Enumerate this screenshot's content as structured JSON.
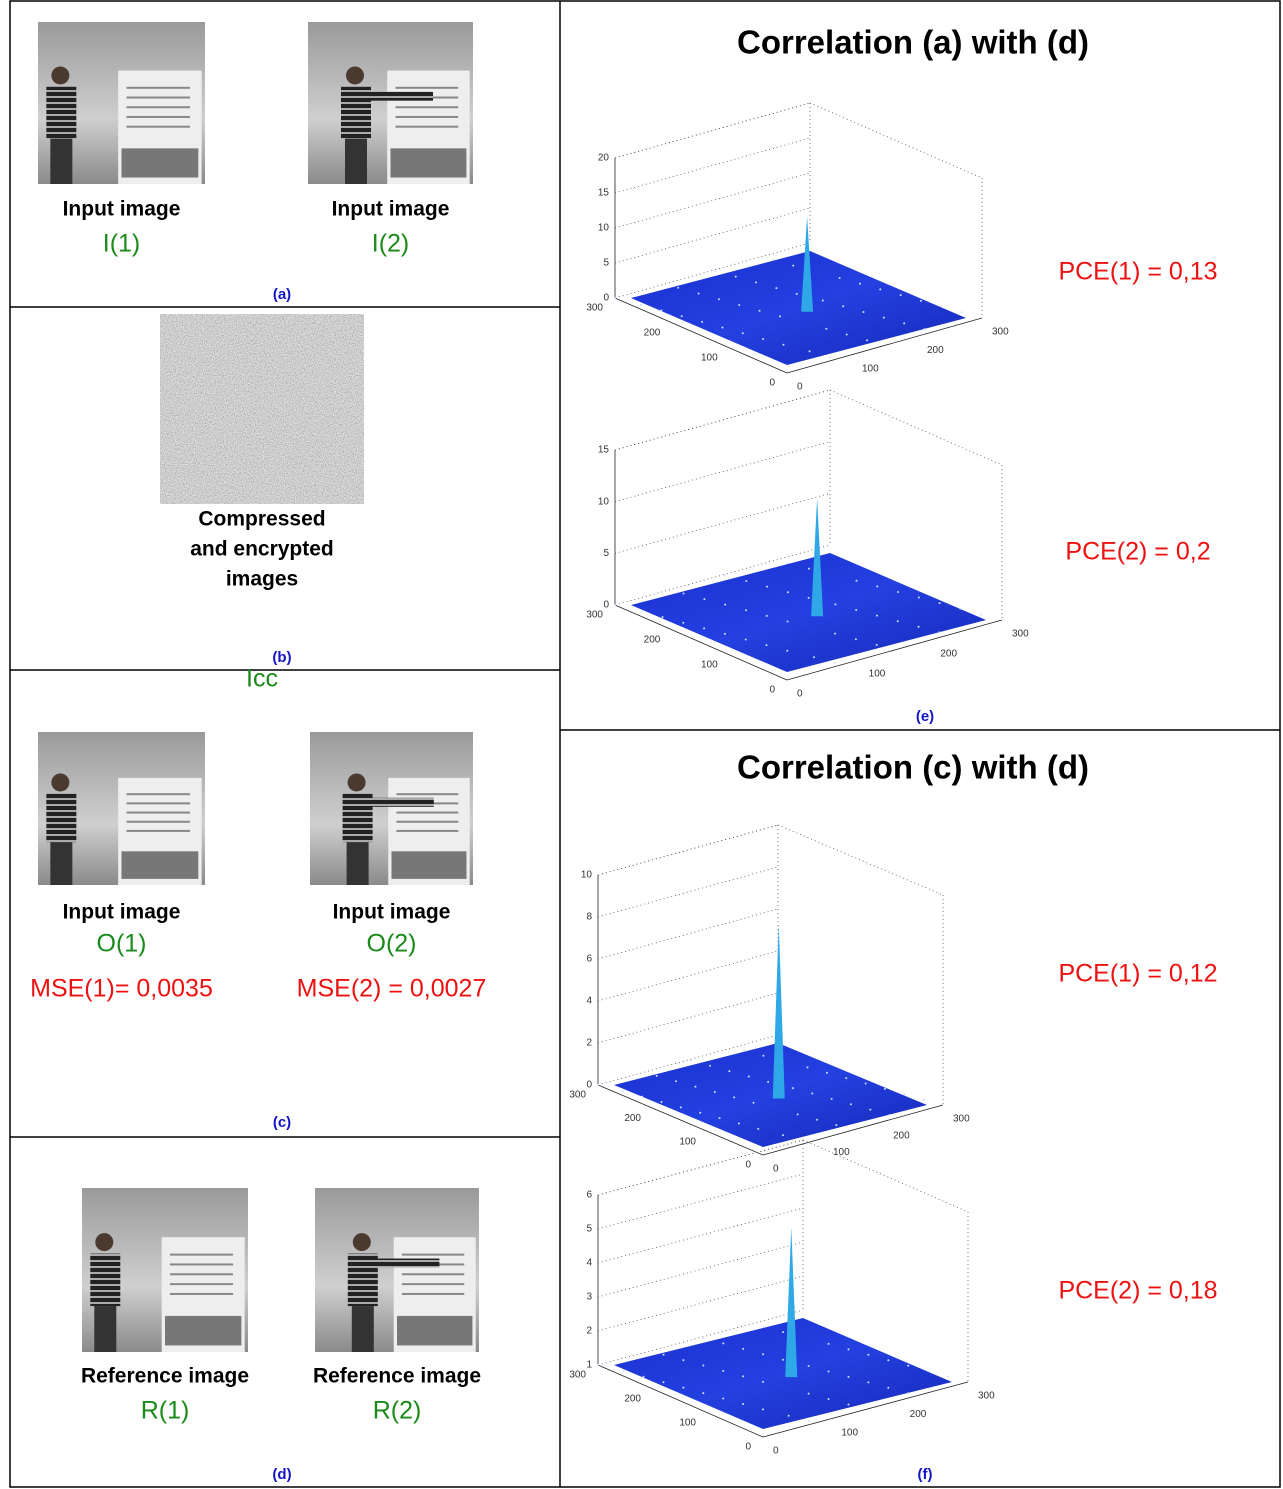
{
  "left_panels": [
    {
      "tag": "(a)",
      "images": [
        {
          "caption": [
            "Input image"
          ],
          "label": "I(1)"
        },
        {
          "caption": [
            "Input image"
          ],
          "label": "I(2)"
        }
      ]
    },
    {
      "tag": "(b)",
      "images": [
        {
          "caption": [
            "Compressed",
            "and encrypted",
            "images"
          ],
          "label": "Icc"
        }
      ]
    },
    {
      "tag": "(c)",
      "images": [
        {
          "caption": [
            "Input image"
          ],
          "label": "O(1)",
          "mse": "MSE(1)= 0,0035"
        },
        {
          "caption": [
            "Input image"
          ],
          "label": "O(2)",
          "mse": "MSE(2) = 0,0027"
        }
      ]
    },
    {
      "tag": "(d)",
      "images": [
        {
          "caption": [
            "Reference image"
          ],
          "label": "R(1)"
        },
        {
          "caption": [
            "Reference image"
          ],
          "label": "R(2)"
        }
      ]
    }
  ],
  "right_panels": [
    {
      "title": "Correlation (a) with (d)",
      "tag": "(e)",
      "plots": [
        {
          "pce": "PCE(1) = 0,13",
          "zticks": [
            0,
            5,
            10,
            15,
            20
          ],
          "xticks": [
            0,
            100,
            200,
            300
          ],
          "yticks": [
            300,
            200,
            100,
            0
          ]
        },
        {
          "pce": "PCE(2) = 0,2",
          "zticks": [
            0,
            5,
            10,
            15
          ],
          "xticks": [
            0,
            100,
            200,
            300
          ],
          "yticks": [
            300,
            200,
            100,
            0
          ]
        }
      ]
    },
    {
      "title": "Correlation (c) with (d)",
      "tag": "(f)",
      "plots": [
        {
          "pce": "PCE(1) = 0,12",
          "zticks": [
            0,
            2,
            4,
            6,
            8,
            10
          ],
          "xticks": [
            0,
            100,
            200,
            300
          ],
          "yticks": [
            300,
            200,
            100,
            0
          ]
        },
        {
          "pce": "PCE(2) = 0,18",
          "zticks": [
            1,
            2,
            3,
            4,
            5,
            6
          ],
          "xticks": [
            0,
            100,
            200,
            300
          ],
          "yticks": [
            300,
            200,
            100,
            0
          ]
        }
      ]
    }
  ]
}
